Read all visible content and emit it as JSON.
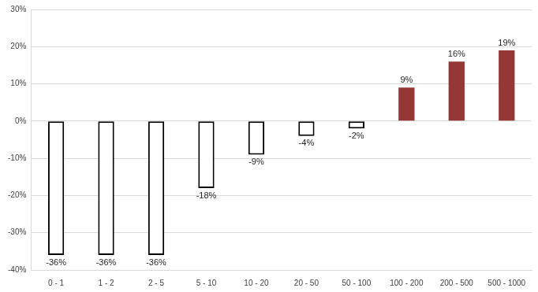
{
  "chart_data": {
    "type": "bar",
    "categories": [
      "0 - 1",
      "1 - 2",
      "2 - 5",
      "5 - 10",
      "10 - 20",
      "20 - 50",
      "50 - 100",
      "100 - 200",
      "200 - 500",
      "500 - 1000"
    ],
    "values": [
      -36,
      -36,
      -36,
      -18,
      -9,
      -4,
      -2,
      9,
      16,
      19
    ],
    "value_labels": [
      "-36%",
      "-36%",
      "-36%",
      "-18%",
      "-9%",
      "-4%",
      "-2%",
      "9%",
      "16%",
      "19%"
    ],
    "colors": [
      "#ffffff",
      "#ffffff",
      "#ffffff",
      "#ffffff",
      "#ffffff",
      "#ffffff",
      "#ffffff",
      "#953735",
      "#953735",
      "#953735"
    ],
    "ylim": [
      -40,
      30
    ],
    "yticks": [
      {
        "value": -40,
        "label": "-40%"
      },
      {
        "value": -30,
        "label": "-30%"
      },
      {
        "value": -20,
        "label": "-20%"
      },
      {
        "value": -10,
        "label": "-10%"
      },
      {
        "value": 0,
        "label": "0%"
      },
      {
        "value": 10,
        "label": "10%"
      },
      {
        "value": 20,
        "label": "20%"
      },
      {
        "value": 30,
        "label": "30%"
      }
    ],
    "grid": true,
    "data_labels": true
  }
}
